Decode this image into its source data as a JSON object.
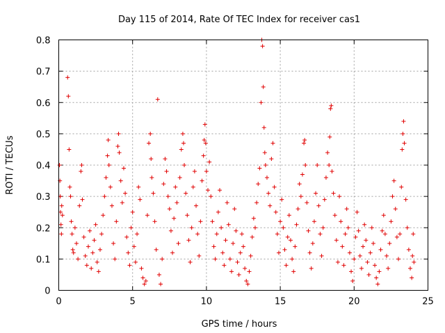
{
  "chart_data": {
    "type": "scatter",
    "title": "Day 115 of 2014, Rate Of TEC Index for receiver cas1",
    "xlabel": "GPS time / hours",
    "ylabel": "ROTI / TECUs",
    "xlim": [
      0,
      25
    ],
    "ylim": [
      0,
      0.8
    ],
    "xticks": [
      0,
      5,
      10,
      15,
      20,
      25
    ],
    "yticks": [
      0,
      0.1,
      0.2,
      0.3,
      0.4,
      0.5,
      0.6,
      0.7,
      0.8
    ],
    "xtick_labels": [
      "0",
      "5",
      "10",
      "15",
      "20",
      "25"
    ],
    "ytick_labels": [
      "0",
      "0.1",
      "0.2",
      "0.3",
      "0.4",
      "0.5",
      "0.6",
      "0.7",
      "0.8"
    ],
    "grid": true,
    "marker": "plus",
    "color": "#e00000",
    "series": [
      {
        "name": "ROTI",
        "points": [
          [
            0.05,
            0.4
          ],
          [
            0.08,
            0.35
          ],
          [
            0.1,
            0.3
          ],
          [
            0.12,
            0.25
          ],
          [
            0.15,
            0.21
          ],
          [
            0.18,
            0.18
          ],
          [
            0.2,
            0.27
          ],
          [
            0.25,
            0.24
          ],
          [
            0.6,
            0.68
          ],
          [
            0.65,
            0.62
          ],
          [
            0.7,
            0.45
          ],
          [
            0.75,
            0.33
          ],
          [
            0.8,
            0.3
          ],
          [
            0.85,
            0.22
          ],
          [
            0.9,
            0.18
          ],
          [
            0.95,
            0.13
          ],
          [
            1.0,
            0.12
          ],
          [
            1.1,
            0.2
          ],
          [
            1.2,
            0.15
          ],
          [
            1.3,
            0.1
          ],
          [
            1.4,
            0.27
          ],
          [
            1.5,
            0.38
          ],
          [
            1.55,
            0.4
          ],
          [
            1.6,
            0.29
          ],
          [
            1.7,
            0.17
          ],
          [
            1.8,
            0.11
          ],
          [
            1.9,
            0.08
          ],
          [
            2.0,
            0.14
          ],
          [
            2.1,
            0.19
          ],
          [
            2.2,
            0.07
          ],
          [
            2.3,
            0.12
          ],
          [
            2.4,
            0.16
          ],
          [
            2.5,
            0.21
          ],
          [
            2.6,
            0.09
          ],
          [
            2.7,
            0.06
          ],
          [
            2.8,
            0.13
          ],
          [
            2.9,
            0.18
          ],
          [
            3.0,
            0.24
          ],
          [
            3.1,
            0.3
          ],
          [
            3.2,
            0.36
          ],
          [
            3.3,
            0.43
          ],
          [
            3.35,
            0.48
          ],
          [
            3.4,
            0.4
          ],
          [
            3.5,
            0.33
          ],
          [
            3.6,
            0.27
          ],
          [
            3.7,
            0.15
          ],
          [
            3.8,
            0.1
          ],
          [
            3.9,
            0.22
          ],
          [
            4.0,
            0.46
          ],
          [
            4.05,
            0.5
          ],
          [
            4.1,
            0.44
          ],
          [
            4.2,
            0.35
          ],
          [
            4.3,
            0.28
          ],
          [
            4.4,
            0.39
          ],
          [
            4.5,
            0.31
          ],
          [
            4.6,
            0.17
          ],
          [
            4.7,
            0.12
          ],
          [
            4.8,
            0.08
          ],
          [
            4.9,
            0.2
          ],
          [
            5.0,
            0.25
          ],
          [
            5.1,
            0.14
          ],
          [
            5.2,
            0.09
          ],
          [
            5.3,
            0.18
          ],
          [
            5.4,
            0.33
          ],
          [
            5.5,
            0.29
          ],
          [
            5.6,
            0.07
          ],
          [
            5.7,
            0.04
          ],
          [
            5.8,
            0.02
          ],
          [
            5.9,
            0.03
          ],
          [
            6.0,
            0.24
          ],
          [
            6.1,
            0.47
          ],
          [
            6.2,
            0.5
          ],
          [
            6.25,
            0.42
          ],
          [
            6.3,
            0.36
          ],
          [
            6.4,
            0.31
          ],
          [
            6.5,
            0.22
          ],
          [
            6.6,
            0.13
          ],
          [
            6.7,
            0.61
          ],
          [
            6.8,
            0.05
          ],
          [
            6.9,
            0.02
          ],
          [
            7.0,
            0.1
          ],
          [
            7.1,
            0.34
          ],
          [
            7.2,
            0.42
          ],
          [
            7.3,
            0.38
          ],
          [
            7.4,
            0.3
          ],
          [
            7.5,
            0.26
          ],
          [
            7.6,
            0.19
          ],
          [
            7.7,
            0.12
          ],
          [
            7.8,
            0.23
          ],
          [
            7.9,
            0.33
          ],
          [
            8.0,
            0.28
          ],
          [
            8.1,
            0.15
          ],
          [
            8.2,
            0.36
          ],
          [
            8.3,
            0.45
          ],
          [
            8.4,
            0.5
          ],
          [
            8.45,
            0.47
          ],
          [
            8.5,
            0.4
          ],
          [
            8.6,
            0.31
          ],
          [
            8.7,
            0.24
          ],
          [
            8.8,
            0.16
          ],
          [
            8.9,
            0.09
          ],
          [
            9.0,
            0.2
          ],
          [
            9.1,
            0.33
          ],
          [
            9.2,
            0.38
          ],
          [
            9.3,
            0.27
          ],
          [
            9.4,
            0.18
          ],
          [
            9.5,
            0.11
          ],
          [
            9.6,
            0.22
          ],
          [
            9.7,
            0.35
          ],
          [
            9.8,
            0.43
          ],
          [
            9.85,
            0.48
          ],
          [
            9.9,
            0.53
          ],
          [
            9.95,
            0.47
          ],
          [
            10.0,
            0.38
          ],
          [
            10.1,
            0.32
          ],
          [
            10.2,
            0.41
          ],
          [
            10.3,
            0.3
          ],
          [
            10.4,
            0.22
          ],
          [
            10.5,
            0.14
          ],
          [
            10.6,
            0.1
          ],
          [
            10.7,
            0.18
          ],
          [
            10.8,
            0.25
          ],
          [
            10.9,
            0.32
          ],
          [
            11.0,
            0.2
          ],
          [
            11.1,
            0.12
          ],
          [
            11.2,
            0.08
          ],
          [
            11.3,
            0.16
          ],
          [
            11.4,
            0.28
          ],
          [
            11.5,
            0.21
          ],
          [
            11.6,
            0.1
          ],
          [
            11.7,
            0.06
          ],
          [
            11.8,
            0.15
          ],
          [
            11.9,
            0.26
          ],
          [
            12.0,
            0.19
          ],
          [
            12.1,
            0.09
          ],
          [
            12.2,
            0.05
          ],
          [
            12.3,
            0.12
          ],
          [
            12.4,
            0.18
          ],
          [
            12.5,
            0.14
          ],
          [
            12.6,
            0.07
          ],
          [
            12.7,
            0.03
          ],
          [
            12.8,
            0.02
          ],
          [
            12.9,
            0.06
          ],
          [
            13.0,
            0.11
          ],
          [
            13.1,
            0.17
          ],
          [
            13.2,
            0.23
          ],
          [
            13.3,
            0.2
          ],
          [
            13.4,
            0.28
          ],
          [
            13.5,
            0.34
          ],
          [
            13.6,
            0.39
          ],
          [
            13.7,
            0.6
          ],
          [
            13.75,
            0.8
          ],
          [
            13.8,
            0.78
          ],
          [
            13.85,
            0.65
          ],
          [
            13.9,
            0.52
          ],
          [
            13.95,
            0.44
          ],
          [
            14.0,
            0.4
          ],
          [
            14.1,
            0.36
          ],
          [
            14.2,
            0.31
          ],
          [
            14.3,
            0.27
          ],
          [
            14.4,
            0.42
          ],
          [
            14.5,
            0.47
          ],
          [
            14.6,
            0.33
          ],
          [
            14.7,
            0.25
          ],
          [
            14.8,
            0.18
          ],
          [
            14.9,
            0.12
          ],
          [
            15.0,
            0.22
          ],
          [
            15.1,
            0.29
          ],
          [
            15.2,
            0.2
          ],
          [
            15.3,
            0.13
          ],
          [
            15.4,
            0.08
          ],
          [
            15.5,
            0.17
          ],
          [
            15.6,
            0.24
          ],
          [
            15.7,
            0.16
          ],
          [
            15.8,
            0.1
          ],
          [
            15.9,
            0.06
          ],
          [
            16.0,
            0.14
          ],
          [
            16.1,
            0.21
          ],
          [
            16.2,
            0.26
          ],
          [
            16.3,
            0.34
          ],
          [
            16.4,
            0.3
          ],
          [
            16.5,
            0.37
          ],
          [
            16.6,
            0.47
          ],
          [
            16.65,
            0.48
          ],
          [
            16.7,
            0.4
          ],
          [
            16.8,
            0.28
          ],
          [
            16.9,
            0.19
          ],
          [
            17.0,
            0.12
          ],
          [
            17.1,
            0.07
          ],
          [
            17.2,
            0.15
          ],
          [
            17.3,
            0.22
          ],
          [
            17.4,
            0.31
          ],
          [
            17.5,
            0.4
          ],
          [
            17.6,
            0.27
          ],
          [
            17.7,
            0.18
          ],
          [
            17.8,
            0.11
          ],
          [
            17.9,
            0.2
          ],
          [
            18.0,
            0.29
          ],
          [
            18.1,
            0.36
          ],
          [
            18.2,
            0.44
          ],
          [
            18.3,
            0.4
          ],
          [
            18.35,
            0.49
          ],
          [
            18.4,
            0.58
          ],
          [
            18.45,
            0.59
          ],
          [
            18.5,
            0.38
          ],
          [
            18.6,
            0.31
          ],
          [
            18.7,
            0.24
          ],
          [
            18.8,
            0.16
          ],
          [
            18.9,
            0.09
          ],
          [
            19.0,
            0.3
          ],
          [
            19.1,
            0.22
          ],
          [
            19.2,
            0.14
          ],
          [
            19.3,
            0.08
          ],
          [
            19.4,
            0.18
          ],
          [
            19.5,
            0.26
          ],
          [
            19.6,
            0.2
          ],
          [
            19.7,
            0.12
          ],
          [
            19.8,
            0.06
          ],
          [
            19.9,
            0.03
          ],
          [
            20.0,
            0.1
          ],
          [
            20.1,
            0.17
          ],
          [
            20.2,
            0.25
          ],
          [
            20.3,
            0.19
          ],
          [
            20.4,
            0.11
          ],
          [
            20.5,
            0.07
          ],
          [
            20.6,
            0.14
          ],
          [
            20.7,
            0.21
          ],
          [
            20.8,
            0.16
          ],
          [
            20.9,
            0.09
          ],
          [
            21.0,
            0.05
          ],
          [
            21.1,
            0.12
          ],
          [
            21.2,
            0.2
          ],
          [
            21.3,
            0.15
          ],
          [
            21.4,
            0.08
          ],
          [
            21.5,
            0.04
          ],
          [
            21.6,
            0.02
          ],
          [
            21.7,
            0.06
          ],
          [
            21.8,
            0.13
          ],
          [
            21.9,
            0.19
          ],
          [
            22.0,
            0.24
          ],
          [
            22.1,
            0.18
          ],
          [
            22.2,
            0.11
          ],
          [
            22.3,
            0.07
          ],
          [
            22.4,
            0.15
          ],
          [
            22.5,
            0.22
          ],
          [
            22.6,
            0.3
          ],
          [
            22.7,
            0.35
          ],
          [
            22.8,
            0.26
          ],
          [
            22.9,
            0.17
          ],
          [
            23.0,
            0.1
          ],
          [
            23.1,
            0.18
          ],
          [
            23.2,
            0.33
          ],
          [
            23.25,
            0.45
          ],
          [
            23.3,
            0.5
          ],
          [
            23.35,
            0.54
          ],
          [
            23.4,
            0.47
          ],
          [
            23.5,
            0.29
          ],
          [
            23.6,
            0.2
          ],
          [
            23.7,
            0.13
          ],
          [
            23.8,
            0.07
          ],
          [
            23.9,
            0.04
          ],
          [
            23.95,
            0.11
          ],
          [
            24.0,
            0.18
          ],
          [
            24.05,
            0.09
          ]
        ]
      }
    ]
  }
}
